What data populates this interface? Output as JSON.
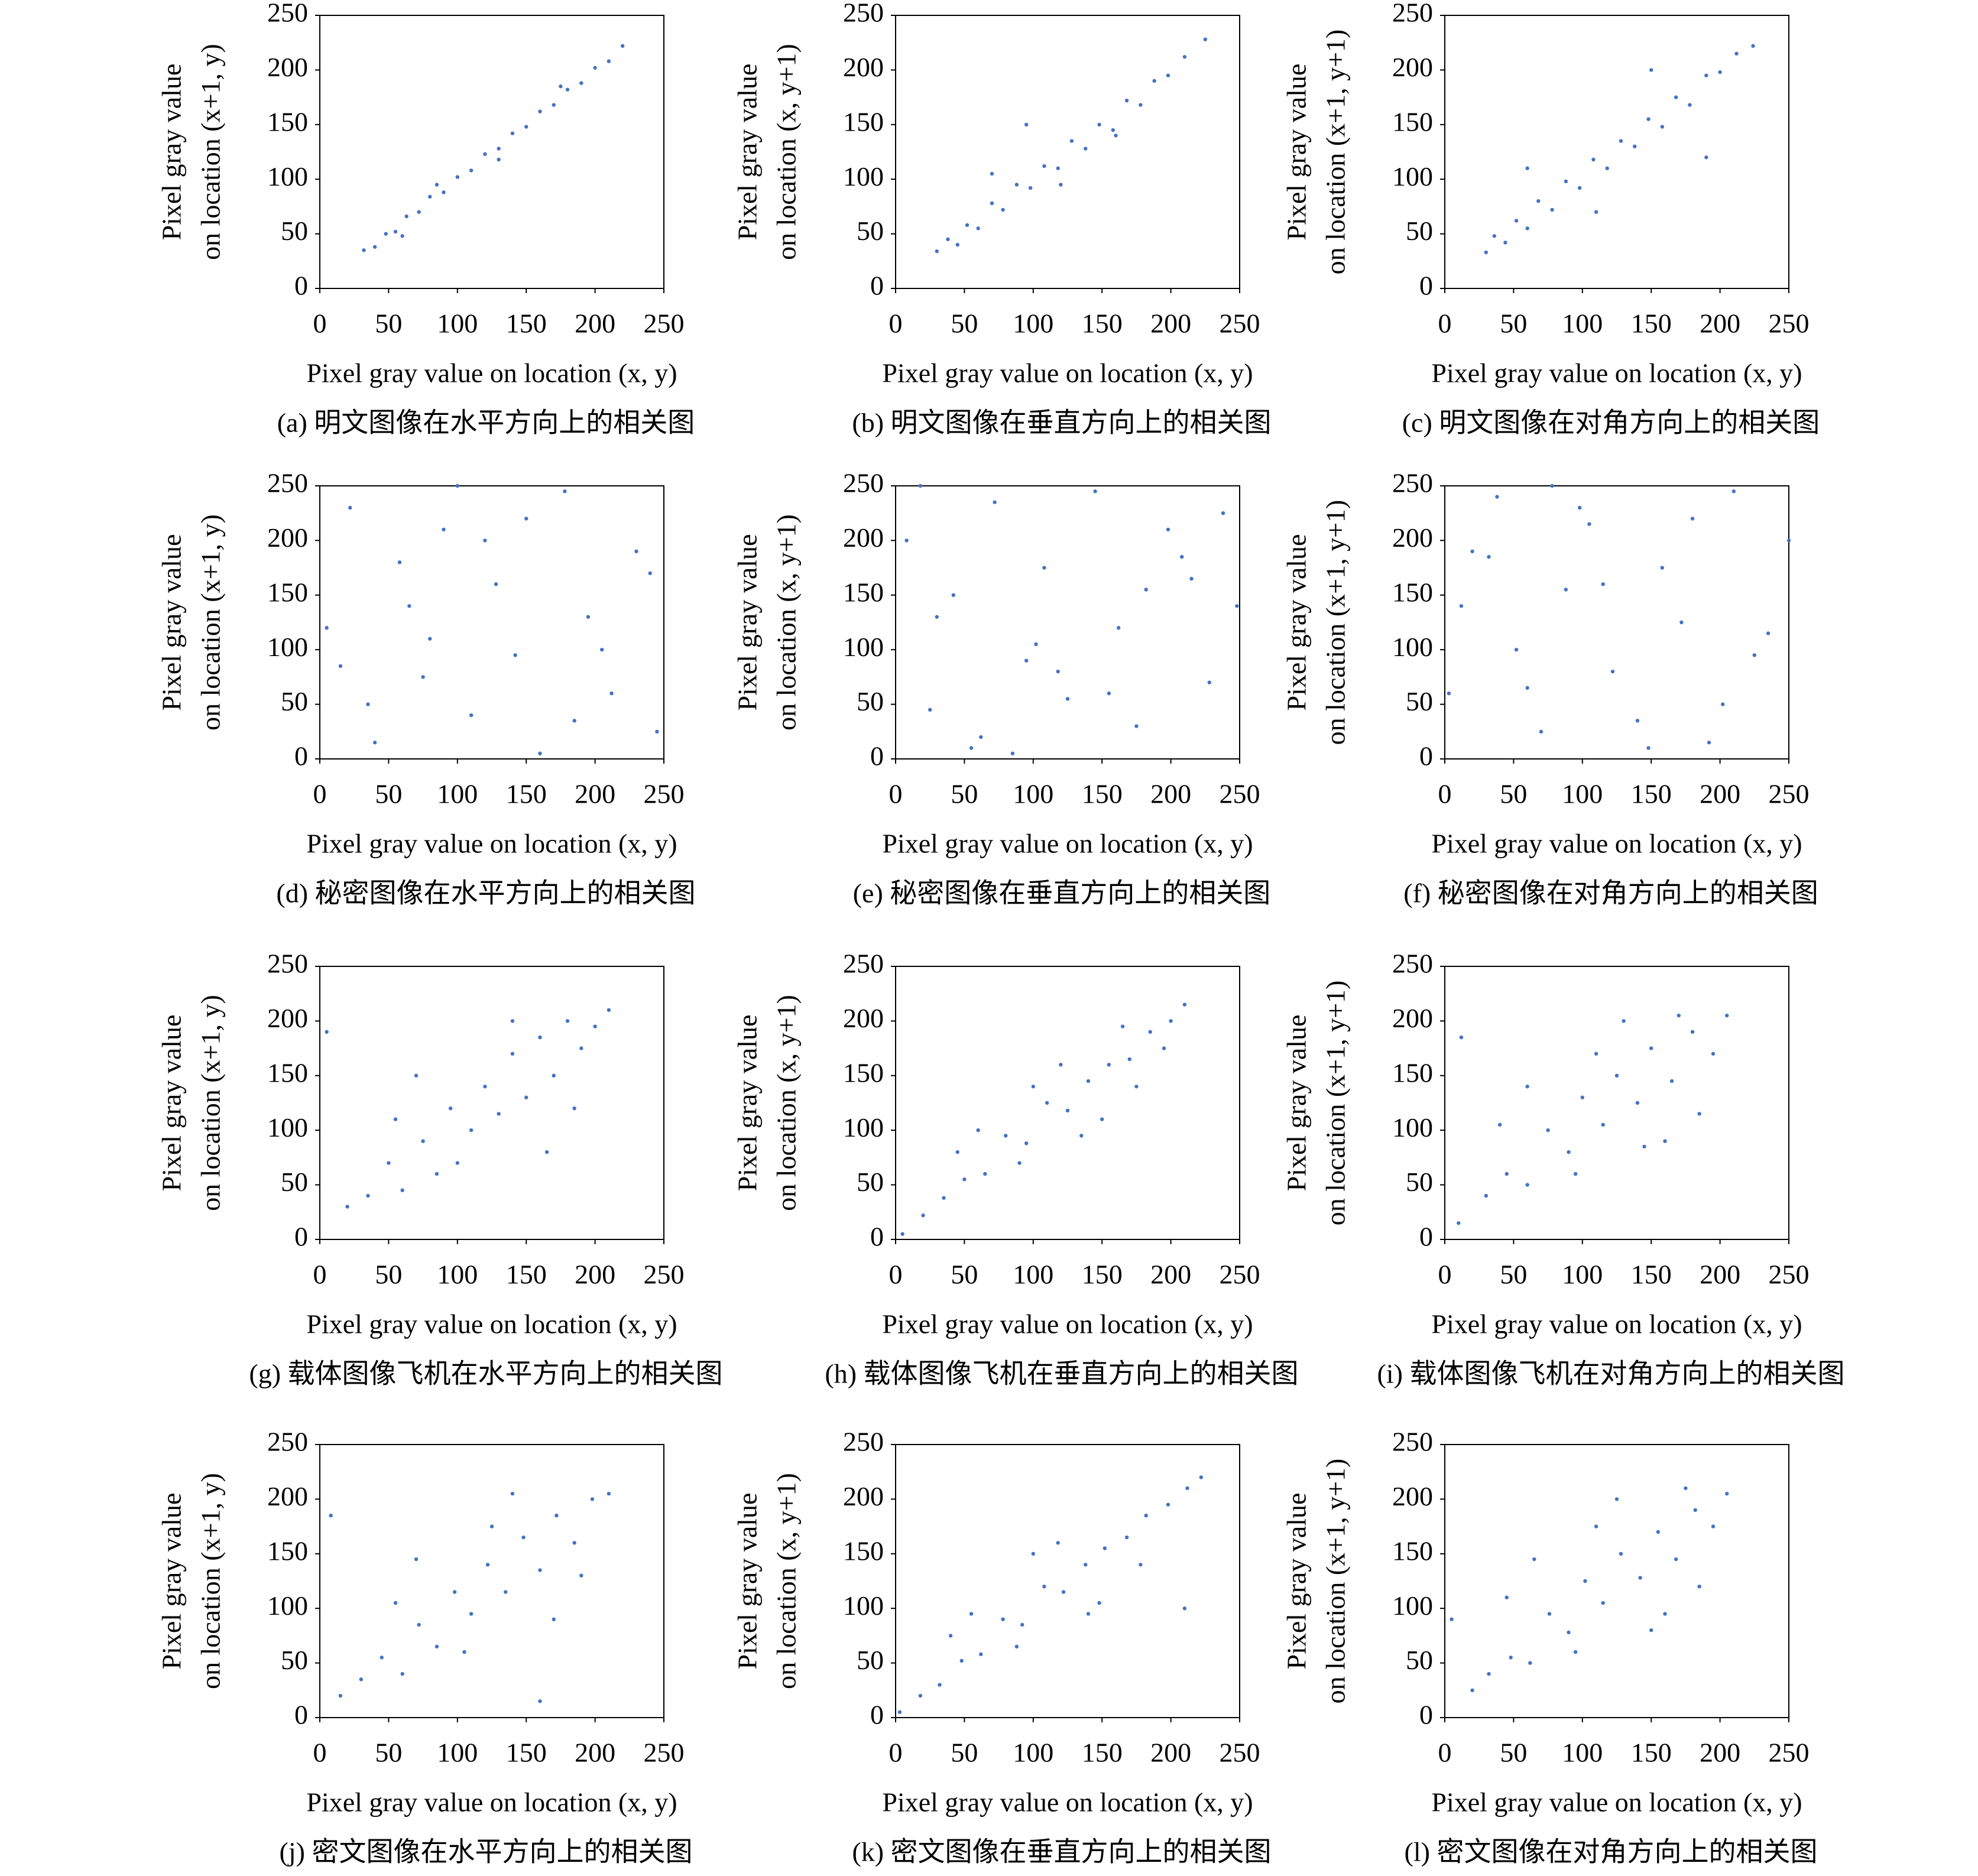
{
  "chart_data": [
    {
      "type": "scatter",
      "caption": "(a) 明文图像在水平方向上的相关图",
      "xlabel": "Pixel gray value on location (x, y)",
      "ylabel": [
        "Pixel gray value",
        "on location (x+1, y)"
      ],
      "color": "#4472c4",
      "xlim": [
        0,
        250
      ],
      "ylim": [
        0,
        250
      ],
      "xticks": [
        0,
        50,
        100,
        150,
        200,
        250
      ],
      "yticks": [
        0,
        50,
        100,
        150,
        200,
        250
      ],
      "x": [
        32,
        40,
        48,
        55,
        63,
        72,
        80,
        90,
        100,
        110,
        120,
        130,
        140,
        150,
        160,
        170,
        180,
        190,
        200,
        210,
        220,
        85,
        130,
        175,
        60
      ],
      "y": [
        35,
        38,
        50,
        52,
        66,
        70,
        84,
        88,
        102,
        108,
        123,
        128,
        142,
        148,
        162,
        168,
        182,
        188,
        202,
        208,
        222,
        95,
        118,
        185,
        48
      ]
    },
    {
      "type": "scatter",
      "caption": "(b) 明文图像在垂直方向上的相关图",
      "xlabel": "Pixel gray value on location (x, y)",
      "ylabel": [
        "Pixel gray value",
        "on location (x, y+1)"
      ],
      "color": "#4472c4",
      "xlim": [
        0,
        250
      ],
      "ylim": [
        0,
        250
      ],
      "xticks": [
        0,
        50,
        100,
        150,
        200,
        250
      ],
      "yticks": [
        0,
        50,
        100,
        150,
        200,
        250
      ],
      "x": [
        30,
        38,
        45,
        52,
        60,
        70,
        78,
        88,
        98,
        108,
        118,
        128,
        138,
        148,
        158,
        168,
        178,
        188,
        198,
        210,
        225,
        70,
        120,
        160,
        95
      ],
      "y": [
        34,
        45,
        40,
        58,
        55,
        78,
        72,
        95,
        92,
        112,
        110,
        135,
        128,
        150,
        145,
        172,
        168,
        190,
        195,
        212,
        228,
        105,
        95,
        140,
        150
      ]
    },
    {
      "type": "scatter",
      "caption": "(c) 明文图像在对角方向上的相关图",
      "xlabel": "Pixel gray value on location (x, y)",
      "ylabel": [
        "Pixel gray value",
        "on location (x+1, y+1)"
      ],
      "color": "#4472c4",
      "xlim": [
        0,
        250
      ],
      "ylim": [
        0,
        250
      ],
      "xticks": [
        0,
        50,
        100,
        150,
        200,
        250
      ],
      "yticks": [
        0,
        50,
        100,
        150,
        200,
        250
      ],
      "x": [
        30,
        36,
        44,
        52,
        60,
        68,
        78,
        88,
        98,
        108,
        118,
        128,
        138,
        148,
        158,
        168,
        178,
        190,
        200,
        212,
        224,
        60,
        110,
        150,
        190
      ],
      "y": [
        33,
        48,
        42,
        62,
        55,
        80,
        72,
        98,
        92,
        118,
        110,
        135,
        130,
        155,
        148,
        175,
        168,
        195,
        198,
        215,
        222,
        110,
        70,
        200,
        120
      ]
    },
    {
      "type": "scatter",
      "caption": "(d) 秘密图像在水平方向上的相关图",
      "xlabel": "Pixel gray value on location (x, y)",
      "ylabel": [
        "Pixel gray value",
        "on location (x+1, y)"
      ],
      "color": "#4472c4",
      "xlim": [
        0,
        250
      ],
      "ylim": [
        0,
        250
      ],
      "xticks": [
        0,
        50,
        100,
        150,
        200,
        250
      ],
      "yticks": [
        0,
        50,
        100,
        150,
        200,
        250
      ],
      "x": [
        5,
        22,
        40,
        58,
        75,
        90,
        110,
        128,
        142,
        160,
        178,
        195,
        212,
        230,
        245,
        15,
        65,
        100,
        150,
        205,
        240,
        35,
        120,
        185,
        80
      ],
      "y": [
        120,
        230,
        15,
        180,
        75,
        210,
        40,
        160,
        95,
        5,
        245,
        130,
        60,
        190,
        25,
        85,
        140,
        250,
        220,
        100,
        170,
        50,
        200,
        35,
        110
      ]
    },
    {
      "type": "scatter",
      "caption": "(e) 秘密图像在垂直方向上的相关图",
      "xlabel": "Pixel gray value on location (x, y)",
      "ylabel": [
        "Pixel gray value",
        "on location (x, y+1)"
      ],
      "color": "#4472c4",
      "xlim": [
        0,
        250
      ],
      "ylim": [
        0,
        250
      ],
      "xticks": [
        0,
        50,
        100,
        150,
        200,
        250
      ],
      "yticks": [
        0,
        50,
        100,
        150,
        200,
        250
      ],
      "x": [
        8,
        25,
        42,
        55,
        72,
        95,
        108,
        125,
        145,
        162,
        175,
        198,
        215,
        228,
        248,
        18,
        62,
        102,
        155,
        208,
        238,
        30,
        118,
        182,
        85
      ],
      "y": [
        200,
        45,
        150,
        10,
        235,
        90,
        175,
        55,
        245,
        120,
        30,
        210,
        165,
        70,
        140,
        250,
        20,
        105,
        60,
        185,
        225,
        130,
        80,
        155,
        5
      ]
    },
    {
      "type": "scatter",
      "caption": "(f) 秘密图像在对角方向上的相关图",
      "xlabel": "Pixel gray value on location (x, y)",
      "ylabel": [
        "Pixel gray value",
        "on location (x+1, y+1)"
      ],
      "color": "#4472c4",
      "xlim": [
        0,
        250
      ],
      "ylim": [
        0,
        250
      ],
      "xticks": [
        0,
        50,
        100,
        150,
        200,
        250
      ],
      "yticks": [
        0,
        50,
        100,
        150,
        200,
        250
      ],
      "x": [
        3,
        20,
        38,
        52,
        70,
        88,
        105,
        122,
        140,
        158,
        172,
        192,
        210,
        225,
        250,
        12,
        60,
        98,
        148,
        202,
        235,
        32,
        115,
        180,
        78
      ],
      "y": [
        60,
        190,
        240,
        100,
        25,
        155,
        215,
        80,
        35,
        175,
        125,
        15,
        245,
        95,
        200,
        140,
        65,
        230,
        10,
        50,
        115,
        185,
        160,
        220,
        250
      ]
    },
    {
      "type": "scatter",
      "caption": "(g) 载体图像飞机在水平方向上的相关图",
      "xlabel": "Pixel gray value on location (x, y)",
      "ylabel": [
        "Pixel gray value",
        "on location (x+1, y)"
      ],
      "color": "#4472c4",
      "xlim": [
        0,
        250
      ],
      "ylim": [
        0,
        250
      ],
      "xticks": [
        0,
        50,
        100,
        150,
        200,
        250
      ],
      "yticks": [
        0,
        50,
        100,
        150,
        200,
        250
      ],
      "x": [
        20,
        35,
        50,
        60,
        75,
        85,
        95,
        110,
        120,
        130,
        140,
        150,
        160,
        170,
        180,
        190,
        200,
        210,
        70,
        100,
        140,
        165,
        185,
        5,
        55
      ],
      "y": [
        30,
        40,
        70,
        45,
        90,
        60,
        120,
        100,
        140,
        115,
        170,
        130,
        185,
        150,
        200,
        175,
        195,
        210,
        150,
        70,
        200,
        80,
        120,
        190,
        110
      ]
    },
    {
      "type": "scatter",
      "caption": "(h) 载体图像飞机在垂直方向上的相关图",
      "xlabel": "Pixel gray value on location (x, y)",
      "ylabel": [
        "Pixel gray value",
        "on location (x, y+1)"
      ],
      "color": "#4472c4",
      "xlim": [
        0,
        250
      ],
      "ylim": [
        0,
        250
      ],
      "xticks": [
        0,
        50,
        100,
        150,
        200,
        250
      ],
      "yticks": [
        0,
        50,
        100,
        150,
        200,
        250
      ],
      "x": [
        5,
        20,
        35,
        50,
        65,
        80,
        95,
        110,
        125,
        140,
        155,
        170,
        185,
        200,
        210,
        60,
        90,
        120,
        150,
        175,
        45,
        100,
        135,
        165,
        195
      ],
      "y": [
        5,
        22,
        38,
        55,
        60,
        95,
        88,
        125,
        118,
        145,
        160,
        165,
        190,
        200,
        215,
        100,
        70,
        160,
        110,
        140,
        80,
        140,
        95,
        195,
        175
      ]
    },
    {
      "type": "scatter",
      "caption": "(i) 载体图像飞机在对角方向上的相关图",
      "xlabel": "Pixel gray value on location (x, y)",
      "ylabel": [
        "Pixel gray value",
        "on location (x+1, y+1)"
      ],
      "color": "#4472c4",
      "xlim": [
        0,
        250
      ],
      "ylim": [
        0,
        250
      ],
      "xticks": [
        0,
        50,
        100,
        150,
        200,
        250
      ],
      "yticks": [
        0,
        50,
        100,
        150,
        200,
        250
      ],
      "x": [
        10,
        30,
        45,
        60,
        75,
        90,
        100,
        115,
        125,
        140,
        150,
        165,
        180,
        195,
        205,
        60,
        95,
        130,
        160,
        185,
        40,
        110,
        145,
        170,
        12
      ],
      "y": [
        15,
        40,
        60,
        50,
        100,
        80,
        130,
        105,
        150,
        125,
        175,
        145,
        190,
        170,
        205,
        140,
        60,
        200,
        90,
        115,
        105,
        170,
        85,
        205,
        185
      ]
    },
    {
      "type": "scatter",
      "caption": "(j) 密文图像在水平方向上的相关图",
      "xlabel": "Pixel gray value on location (x, y)",
      "ylabel": [
        "Pixel gray value",
        "on location (x+1, y)"
      ],
      "color": "#4472c4",
      "xlim": [
        0,
        250
      ],
      "ylim": [
        0,
        250
      ],
      "xticks": [
        0,
        50,
        100,
        150,
        200,
        250
      ],
      "yticks": [
        0,
        50,
        100,
        150,
        200,
        250
      ],
      "x": [
        15,
        30,
        45,
        60,
        72,
        85,
        98,
        110,
        122,
        135,
        148,
        160,
        172,
        185,
        198,
        210,
        70,
        105,
        140,
        170,
        190,
        8,
        55,
        125,
        160
      ],
      "y": [
        20,
        35,
        55,
        40,
        85,
        65,
        115,
        95,
        140,
        115,
        165,
        135,
        185,
        160,
        200,
        205,
        145,
        60,
        205,
        90,
        130,
        185,
        105,
        175,
        15
      ]
    },
    {
      "type": "scatter",
      "caption": "(k) 密文图像在垂直方向上的相关图",
      "xlabel": "Pixel gray value on location (x, y)",
      "ylabel": [
        "Pixel gray value",
        "on location (x, y+1)"
      ],
      "color": "#4472c4",
      "xlim": [
        0,
        250
      ],
      "ylim": [
        0,
        250
      ],
      "xticks": [
        0,
        50,
        100,
        150,
        200,
        250
      ],
      "yticks": [
        0,
        50,
        100,
        150,
        200,
        250
      ],
      "x": [
        3,
        18,
        32,
        48,
        62,
        78,
        92,
        108,
        122,
        138,
        152,
        168,
        182,
        198,
        212,
        222,
        55,
        88,
        118,
        148,
        178,
        40,
        100,
        140,
        210
      ],
      "y": [
        5,
        20,
        30,
        52,
        58,
        90,
        85,
        120,
        115,
        140,
        155,
        165,
        185,
        195,
        210,
        220,
        95,
        65,
        160,
        105,
        140,
        75,
        150,
        95,
        100
      ]
    },
    {
      "type": "scatter",
      "caption": "(l) 密文图像在对角方向上的相关图",
      "xlabel": "Pixel gray value on location (x, y)",
      "ylabel": [
        "Pixel gray value",
        "on location (x+1, y+1)"
      ],
      "color": "#4472c4",
      "xlim": [
        0,
        250
      ],
      "ylim": [
        0,
        250
      ],
      "xticks": [
        0,
        50,
        100,
        150,
        200,
        250
      ],
      "yticks": [
        0,
        50,
        100,
        150,
        200,
        250
      ],
      "x": [
        20,
        32,
        48,
        62,
        76,
        90,
        102,
        115,
        128,
        142,
        155,
        168,
        182,
        195,
        205,
        65,
        95,
        125,
        160,
        185,
        45,
        110,
        150,
        175,
        5
      ],
      "y": [
        25,
        40,
        55,
        50,
        95,
        78,
        125,
        105,
        150,
        128,
        170,
        145,
        190,
        175,
        205,
        145,
        60,
        200,
        95,
        120,
        110,
        175,
        80,
        210,
        90
      ]
    }
  ]
}
